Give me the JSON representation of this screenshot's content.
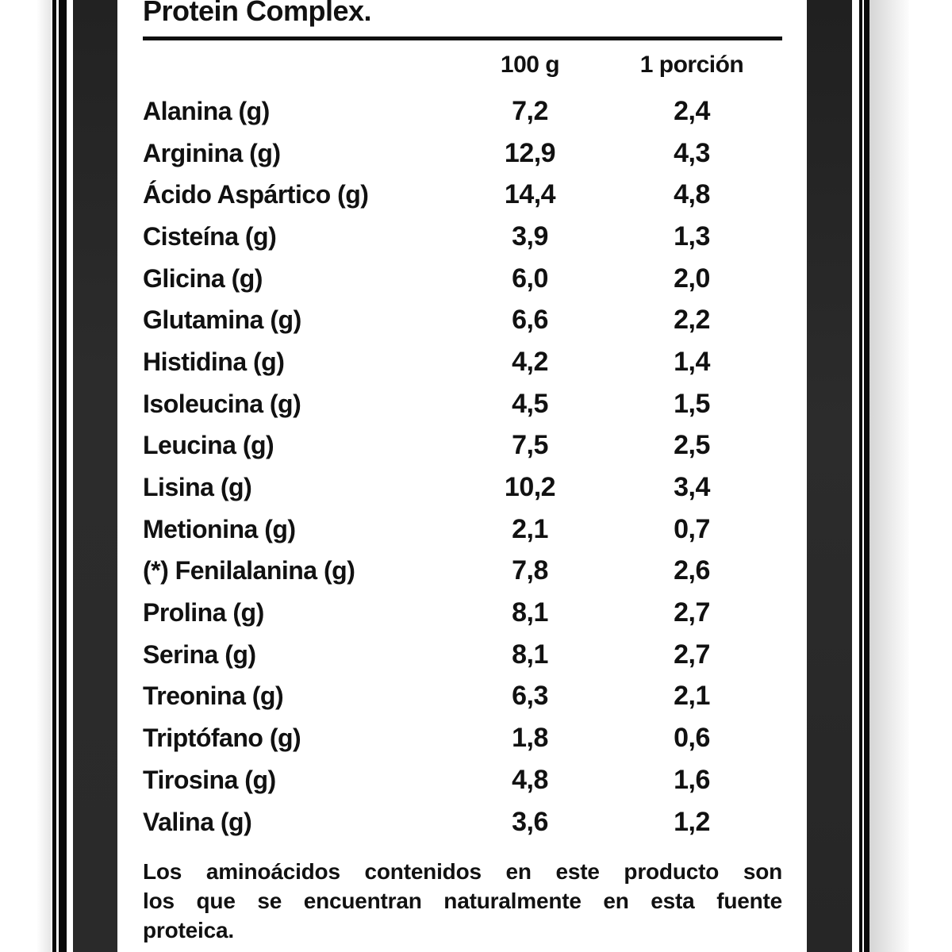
{
  "label": {
    "title": "Protein Complex.",
    "columns": [
      "100 g",
      "1 porción"
    ],
    "rows": [
      {
        "name": "Alanina (g)",
        "per_100g": "7,2",
        "per_portion": "2,4"
      },
      {
        "name": "Arginina (g)",
        "per_100g": "12,9",
        "per_portion": "4,3"
      },
      {
        "name": "Ácido Aspártico (g)",
        "per_100g": "14,4",
        "per_portion": "4,8"
      },
      {
        "name": "Cisteína (g)",
        "per_100g": "3,9",
        "per_portion": "1,3"
      },
      {
        "name": "Glicina (g)",
        "per_100g": "6,0",
        "per_portion": "2,0"
      },
      {
        "name": "Glutamina (g)",
        "per_100g": "6,6",
        "per_portion": "2,2"
      },
      {
        "name": "Histidina (g)",
        "per_100g": "4,2",
        "per_portion": "1,4"
      },
      {
        "name": "Isoleucina (g)",
        "per_100g": "4,5",
        "per_portion": "1,5"
      },
      {
        "name": "Leucina (g)",
        "per_100g": "7,5",
        "per_portion": "2,5"
      },
      {
        "name": "Lisina (g)",
        "per_100g": "10,2",
        "per_portion": "3,4"
      },
      {
        "name": "Metionina (g)",
        "per_100g": "2,1",
        "per_portion": "0,7"
      },
      {
        "name": "(*) Fenilalanina (g)",
        "per_100g": "7,8",
        "per_portion": "2,6"
      },
      {
        "name": "Prolina (g)",
        "per_100g": "8,1",
        "per_portion": "2,7"
      },
      {
        "name": "Serina (g)",
        "per_100g": "8,1",
        "per_portion": "2,7"
      },
      {
        "name": "Treonina (g)",
        "per_100g": "6,3",
        "per_portion": "2,1"
      },
      {
        "name": "Triptófano (g)",
        "per_100g": "1,8",
        "per_portion": "0,6"
      },
      {
        "name": "Tirosina (g)",
        "per_100g": "4,8",
        "per_portion": "1,6"
      },
      {
        "name": "Valina (g)",
        "per_100g": "3,6",
        "per_portion": "1,2"
      }
    ],
    "footnote_lines": [
      "Los aminoácidos contenidos en este producto son",
      "los que se encuentran naturalmente en esta fuente",
      "proteica."
    ]
  },
  "colors": {
    "text": "#111111",
    "bar-dark": "#2c2c2c",
    "line-black": "#0a0a0a",
    "strip-left": "#e6e6e6",
    "strip-right": "#d5d5d5"
  }
}
